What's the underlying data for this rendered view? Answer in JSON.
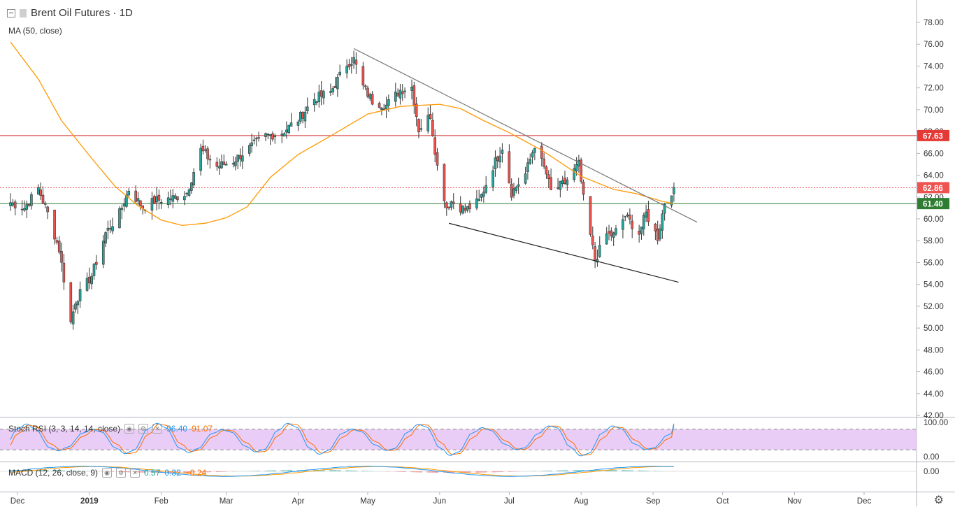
{
  "legend": {
    "symbol": "Brent Oil Futures · 1D",
    "ma": "MA (50, close)",
    "stoch_rsi": "Stoch RSI (3, 3, 14, 14, close)",
    "stoch_k": "96.40",
    "stoch_d": "91.07",
    "macd": "MACD (12, 26, close, 9)",
    "macd_hist": "0.57",
    "macd_line": "0.32",
    "macd_signal": "−0.24"
  },
  "icons": [
    "collapse-icon",
    "symbol-flag-icon",
    "eye-icon",
    "settings-icon",
    "close-icon",
    "gear-icon"
  ],
  "colors": {
    "bull": "#26a69a",
    "bear": "#ef5350",
    "ma": "#ff9800",
    "resistance": "#d32f2f",
    "support": "#2e7d32",
    "current": "#ef5350",
    "stoch_k": "#2196f3",
    "stoch_d": "#ff6d00",
    "stoch_band": "#e8c8f5"
  },
  "chart_data": {
    "type": "candlestick",
    "title": "Brent Oil Futures · 1D",
    "x_axis": {
      "ticks": [
        "Dec",
        "2019",
        "Feb",
        "Mar",
        "Apr",
        "May",
        "Jun",
        "Jul",
        "Aug",
        "Sep",
        "Oct",
        "Nov",
        "Dec"
      ],
      "tick_dates": [
        "2018-12-01",
        "2019-01-01",
        "2019-02-01",
        "2019-03-01",
        "2019-04-01",
        "2019-05-01",
        "2019-06-01",
        "2019-07-01",
        "2019-08-01",
        "2019-09-01",
        "2019-10-01",
        "2019-11-01",
        "2019-12-01"
      ]
    },
    "y_axis": {
      "range": [
        42,
        78
      ],
      "ticks": [
        "78.00",
        "76.00",
        "74.00",
        "72.00",
        "70.00",
        "68.00",
        "66.00",
        "64.00",
        "62.00",
        "60.00",
        "58.00",
        "56.00",
        "54.00",
        "52.00",
        "50.00",
        "48.00",
        "46.00",
        "44.00",
        "42.00"
      ]
    },
    "price_labels": [
      {
        "name": "resistance",
        "value": 67.63,
        "text": "67.63"
      },
      {
        "name": "current",
        "value": 62.86,
        "text": "62.86"
      },
      {
        "name": "support",
        "value": 61.4,
        "text": "61.40"
      }
    ],
    "trendlines": [
      {
        "name": "upper-trendline",
        "points": [
          [
            "2019-04-25",
            75.6
          ],
          [
            "2019-09-20",
            59.7
          ]
        ]
      },
      {
        "name": "lower-trendline",
        "points": [
          [
            "2019-06-05",
            59.6
          ],
          [
            "2019-09-12",
            54.2
          ]
        ]
      }
    ],
    "anchors": [
      [
        "2018-11-28",
        61.5
      ],
      [
        "2018-12-04",
        61.0
      ],
      [
        "2018-12-10",
        62.8
      ],
      [
        "2018-12-14",
        60.5
      ],
      [
        "2018-12-19",
        57.2
      ],
      [
        "2018-12-24",
        50.5
      ],
      [
        "2018-12-26",
        52.5
      ],
      [
        "2019-01-02",
        54.8
      ],
      [
        "2019-01-08",
        58.7
      ],
      [
        "2019-01-14",
        60.5
      ],
      [
        "2019-01-18",
        62.7
      ],
      [
        "2019-01-24",
        61.1
      ],
      [
        "2019-01-30",
        61.7
      ],
      [
        "2019-02-06",
        61.9
      ],
      [
        "2019-02-12",
        62.4
      ],
      [
        "2019-02-18",
        66.3
      ],
      [
        "2019-02-25",
        64.8
      ],
      [
        "2019-03-04",
        65.3
      ],
      [
        "2019-03-11",
        66.5
      ],
      [
        "2019-03-18",
        67.6
      ],
      [
        "2019-03-25",
        67.9
      ],
      [
        "2019-04-01",
        69.1
      ],
      [
        "2019-04-08",
        71.0
      ],
      [
        "2019-04-15",
        71.6
      ],
      [
        "2019-04-22",
        74.2
      ],
      [
        "2019-04-25",
        74.6
      ],
      [
        "2019-04-29",
        72.1
      ],
      [
        "2019-05-03",
        70.8
      ],
      [
        "2019-05-09",
        70.4
      ],
      [
        "2019-05-15",
        71.8
      ],
      [
        "2019-05-20",
        72.1
      ],
      [
        "2019-05-23",
        68.2
      ],
      [
        "2019-05-28",
        69.5
      ],
      [
        "2019-05-31",
        64.8
      ],
      [
        "2019-06-04",
        61.1
      ],
      [
        "2019-06-06",
        61.6
      ],
      [
        "2019-06-12",
        60.8
      ],
      [
        "2019-06-18",
        61.6
      ],
      [
        "2019-06-24",
        64.8
      ],
      [
        "2019-06-28",
        66.6
      ],
      [
        "2019-07-02",
        62.4
      ],
      [
        "2019-07-08",
        64.1
      ],
      [
        "2019-07-12",
        66.8
      ],
      [
        "2019-07-17",
        64.1
      ],
      [
        "2019-07-19",
        62.5
      ],
      [
        "2019-07-25",
        63.3
      ],
      [
        "2019-07-31",
        65.0
      ],
      [
        "2019-08-02",
        61.8
      ],
      [
        "2019-08-07",
        56.2
      ],
      [
        "2019-08-12",
        58.6
      ],
      [
        "2019-08-15",
        58.5
      ],
      [
        "2019-08-20",
        60.3
      ],
      [
        "2019-08-26",
        58.7
      ],
      [
        "2019-08-29",
        60.5
      ],
      [
        "2019-09-03",
        58.3
      ],
      [
        "2019-09-06",
        61.5
      ],
      [
        "2019-09-10",
        62.9
      ]
    ],
    "ma50_points": [
      [
        "2018-11-28",
        76.2
      ],
      [
        "2018-12-10",
        72.8
      ],
      [
        "2018-12-20",
        69.0
      ],
      [
        "2019-01-01",
        65.8
      ],
      [
        "2019-01-12",
        63.0
      ],
      [
        "2019-01-22",
        61.2
      ],
      [
        "2019-02-01",
        59.9
      ],
      [
        "2019-02-10",
        59.4
      ],
      [
        "2019-02-20",
        59.6
      ],
      [
        "2019-03-01",
        60.1
      ],
      [
        "2019-03-10",
        61.1
      ],
      [
        "2019-03-20",
        63.8
      ],
      [
        "2019-04-01",
        65.9
      ],
      [
        "2019-04-15",
        67.6
      ],
      [
        "2019-05-01",
        69.6
      ],
      [
        "2019-05-15",
        70.3
      ],
      [
        "2019-06-01",
        70.5
      ],
      [
        "2019-06-10",
        70.1
      ],
      [
        "2019-06-20",
        69.0
      ],
      [
        "2019-07-01",
        67.9
      ],
      [
        "2019-07-15",
        66.3
      ],
      [
        "2019-08-01",
        63.9
      ],
      [
        "2019-08-15",
        62.7
      ],
      [
        "2019-08-25",
        62.3
      ],
      [
        "2019-09-05",
        61.6
      ],
      [
        "2019-09-10",
        61.4
      ]
    ],
    "stoch_rsi": {
      "range": [
        0,
        100
      ],
      "ticks": [
        "100.00",
        "0.00"
      ],
      "bands": [
        80,
        20
      ],
      "k": 96.4,
      "d": 91.07
    },
    "macd": {
      "ticks": [
        "0.00"
      ],
      "hist": 0.57,
      "macd": 0.32,
      "signal": -0.24
    }
  }
}
